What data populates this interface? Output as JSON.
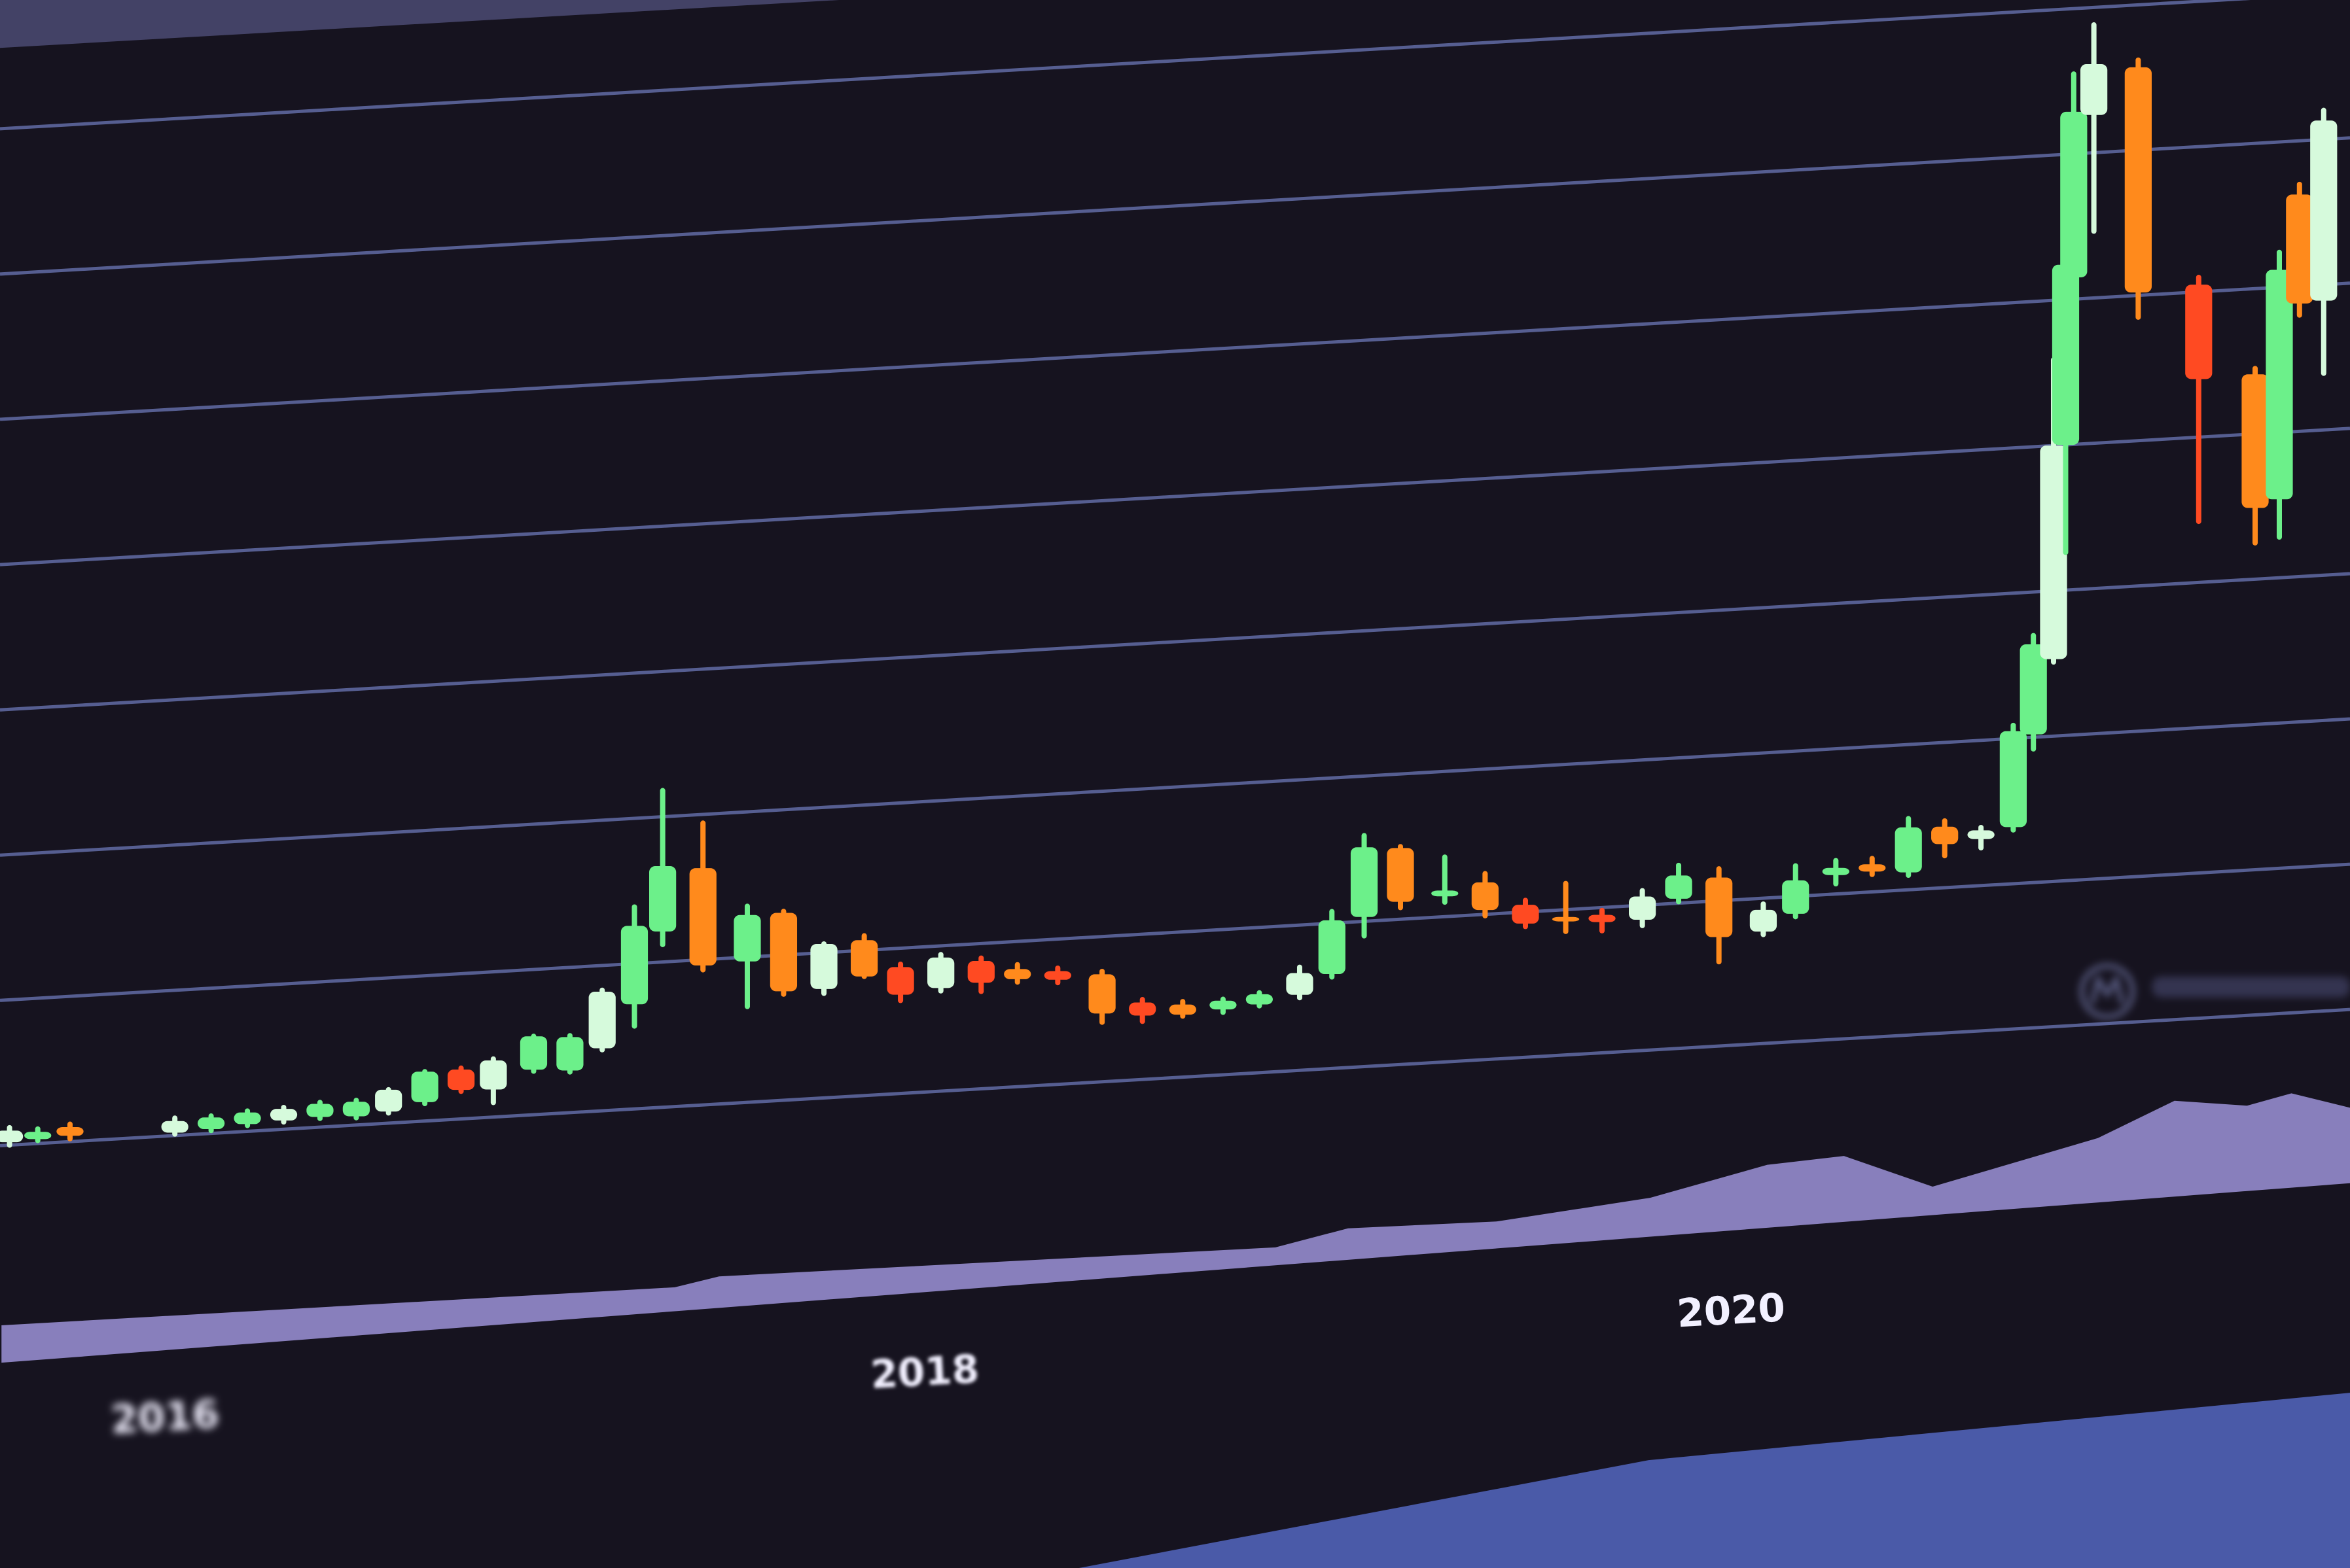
{
  "chart_data": {
    "type": "candlestick",
    "title": "",
    "xlabel": "",
    "ylabel": "",
    "x_tick_labels": [
      "2016",
      "2018",
      "2020"
    ],
    "x_tick_values": [
      2016,
      2018,
      2020
    ],
    "xlim": [
      2015.7,
      2021.55
    ],
    "ylim": [
      0,
      75
    ],
    "grid": true,
    "colors": {
      "background": "#16131f",
      "up": "#6cf08a",
      "up_bright": "#d6fadc",
      "down": "#ff4a22",
      "down_alt": "#ff8a1c",
      "grid": "#6c78b8",
      "volume": "#9c93d8",
      "bezel": "#4a5aa8"
    },
    "candles": {
      "fields": [
        "x",
        "open",
        "high",
        "low",
        "close"
      ],
      "rows": [
        [
          2015.73,
          0.2,
          1.2,
          0,
          1.0
        ],
        [
          2015.8,
          0.3,
          1.0,
          0.2,
          0.8
        ],
        [
          2015.88,
          1.0,
          1.2,
          0.2,
          0.4
        ],
        [
          2016.14,
          0.2,
          1.2,
          0.1,
          1.0
        ],
        [
          2016.23,
          0.3,
          1.2,
          0.2,
          1.1
        ],
        [
          2016.32,
          0.5,
          1.4,
          0.4,
          1.3
        ],
        [
          2016.41,
          0.6,
          1.5,
          0.5,
          1.4
        ],
        [
          2016.5,
          0.7,
          1.7,
          0.6,
          1.6
        ],
        [
          2016.59,
          0.6,
          1.7,
          0.5,
          1.6
        ],
        [
          2016.67,
          0.8,
          2.3,
          0.7,
          2.3
        ],
        [
          2016.76,
          1.3,
          3.4,
          1.2,
          3.4
        ],
        [
          2016.85,
          3.4,
          3.5,
          1.9,
          2.0
        ],
        [
          2016.93,
          1.9,
          4.0,
          1.0,
          3.9
        ],
        [
          2017.03,
          3.1,
          5.4,
          3.0,
          5.4
        ],
        [
          2017.12,
          2.9,
          5.3,
          2.8,
          5.2
        ],
        [
          2017.2,
          4.3,
          8.3,
          4.2,
          8.2
        ],
        [
          2017.28,
          7.2,
          13.9,
          5.7,
          12.6
        ],
        [
          2017.35,
          12.1,
          21.8,
          11.2,
          16.6
        ],
        [
          2017.45,
          16.3,
          19.4,
          9.3,
          9.6
        ],
        [
          2017.56,
          9.7,
          13.5,
          6.6,
          12.9
        ],
        [
          2017.65,
          12.9,
          13.0,
          7.3,
          7.5
        ],
        [
          2017.75,
          7.5,
          10.6,
          7.2,
          10.6
        ],
        [
          2017.85,
          10.7,
          11.0,
          8.2,
          8.2
        ],
        [
          2017.94,
          8.7,
          8.9,
          6.4,
          6.8
        ],
        [
          2018.04,
          7.1,
          9.4,
          6.9,
          9.2
        ],
        [
          2018.14,
          8.8,
          9.0,
          6.7,
          7.3
        ],
        [
          2018.23,
          8.1,
          8.4,
          7.2,
          7.4
        ],
        [
          2018.33,
          7.8,
          8.0,
          7.0,
          7.2
        ],
        [
          2018.44,
          7.4,
          7.6,
          4.1,
          4.7
        ],
        [
          2018.54,
          5.3,
          5.5,
          4.0,
          4.4
        ],
        [
          2018.64,
          5.0,
          5.2,
          4.2,
          4.3
        ],
        [
          2018.74,
          4.5,
          5.2,
          4.3,
          5.1
        ],
        [
          2018.83,
          4.7,
          5.5,
          4.6,
          5.4
        ],
        [
          2018.93,
          5.2,
          7.1,
          5.0,
          6.7
        ],
        [
          2019.01,
          6.5,
          10.8,
          6.3,
          10.2
        ],
        [
          2019.09,
          10.3,
          15.9,
          9.0,
          15.1
        ],
        [
          2019.18,
          14.9,
          15.0,
          10.8,
          11.2
        ],
        [
          2019.29,
          11.4,
          14.1,
          11.0,
          11.8
        ],
        [
          2019.39,
          12.2,
          12.8,
          9.9,
          10.3
        ],
        [
          2019.49,
          10.5,
          10.8,
          9.0,
          9.2
        ],
        [
          2019.59,
          9.5,
          11.8,
          8.5,
          9.2
        ],
        [
          2019.68,
          9.5,
          9.8,
          8.4,
          9.0
        ],
        [
          2019.78,
          9.0,
          11.0,
          8.6,
          10.6
        ],
        [
          2019.87,
          10.3,
          12.6,
          10.1,
          11.9
        ],
        [
          2019.97,
          11.6,
          12.2,
          5.8,
          7.5
        ],
        [
          2020.08,
          7.7,
          9.6,
          7.5,
          9.2
        ],
        [
          2020.16,
          8.8,
          12.1,
          8.6,
          11.1
        ],
        [
          2020.26,
          11.3,
          12.3,
          10.7,
          11.8
        ],
        [
          2020.35,
          11.9,
          12.3,
          11.2,
          11.4
        ],
        [
          2020.44,
          11.2,
          14.9,
          11.0,
          14.3
        ],
        [
          2020.53,
          14.2,
          14.6,
          12.2,
          13.0
        ],
        [
          2020.62,
          13.2,
          14.0,
          12.6,
          13.8
        ],
        [
          2020.7,
          13.9,
          20.9,
          13.7,
          20.5
        ],
        [
          2020.75,
          20.2,
          27.0,
          19.2,
          26.4
        ],
        [
          2020.8,
          25.3,
          45.9,
          25.1,
          40.0
        ],
        [
          2020.83,
          40.0,
          52.9,
          32.6,
          52.4
        ],
        [
          2020.85,
          51.5,
          65.5,
          46.9,
          62.9
        ],
        [
          2020.9,
          62.6,
          68.8,
          54.6,
          66.1
        ],
        [
          2021.01,
          65.7,
          66.2,
          48.5,
          50.2
        ],
        [
          2021.16,
          50.5,
          51.0,
          34.2,
          44.0
        ],
        [
          2021.3,
          44.1,
          44.5,
          32.5,
          34.9
        ],
        [
          2021.36,
          35.4,
          52.4,
          32.8,
          51.2
        ],
        [
          2021.41,
          56.3,
          57.0,
          48.0,
          48.8
        ],
        [
          2021.47,
          48.9,
          62.0,
          43.9,
          61.3
        ]
      ]
    },
    "volume": {
      "x": [
        2015.71,
        2017.38,
        2017.49,
        2018.87,
        2019.05,
        2019.42,
        2019.8,
        2020.09,
        2020.28,
        2020.5,
        2020.91,
        2021.1,
        2021.28,
        2021.39,
        2021.54
      ],
      "values": [
        25,
        16,
        21,
        12,
        21,
        18,
        26,
        42,
        44,
        19,
        43,
        64,
        57,
        63,
        50
      ]
    }
  },
  "watermark": {
    "icon": "coinmarketcap-logo-icon"
  }
}
